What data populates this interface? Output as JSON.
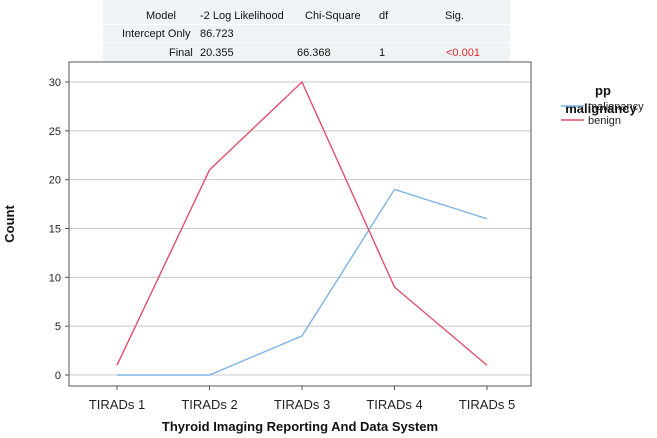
{
  "stats_table": {
    "headers": [
      "Model",
      "-2 Log Likelihood",
      "Chi-Square",
      "df",
      "Sig."
    ],
    "rows": [
      {
        "model": "Intercept Only",
        "neg2ll": "86.723",
        "chi_square": "",
        "df": "",
        "sig": ""
      },
      {
        "model": "Final",
        "neg2ll": "20.355",
        "chi_square": "66.368",
        "df": "1",
        "sig": "<0.001"
      }
    ],
    "sig_color": "#e8262a",
    "background_color": "#eef4f5"
  },
  "chart_data": {
    "type": "line",
    "categories": [
      "TIRADs 1",
      "TIRADs 2",
      "TIRADs 3",
      "TIRADs 4",
      "TIRADs 5"
    ],
    "series": [
      {
        "name": "malignancy",
        "values": [
          0,
          0,
          4,
          19,
          16
        ],
        "color": "#7fb4e6"
      },
      {
        "name": "benign",
        "values": [
          1,
          21,
          30,
          9,
          1
        ],
        "color": "#e0506a"
      }
    ],
    "xlabel": "Thyroid Imaging Reporting And Data System",
    "ylabel": "Count",
    "ylim": [
      0,
      30
    ],
    "yticks": [
      0,
      5,
      10,
      15,
      20,
      25,
      30
    ],
    "grid": true,
    "legend": {
      "title": "pp malignancy",
      "placement": "right"
    }
  }
}
